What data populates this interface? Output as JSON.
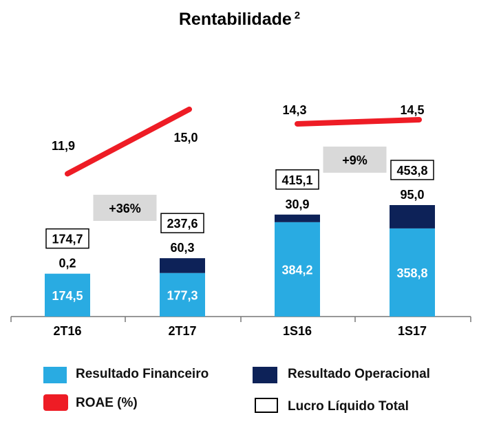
{
  "title": "Rentabilidade",
  "title_sup": "2",
  "colors": {
    "financeiro": "#29abe2",
    "operacional": "#0d2258",
    "roae": "#ee1c25",
    "growth_box": "#d9d9d9"
  },
  "chart_data": {
    "type": "bar",
    "stacked": true,
    "categories": [
      "2T16",
      "2T17",
      "1S16",
      "1S17"
    ],
    "series": [
      {
        "name": "Resultado Financeiro",
        "values": [
          174.5,
          177.3,
          384.2,
          358.8
        ],
        "labels": [
          "174,5",
          "177,3",
          "384,2",
          "358,8"
        ]
      },
      {
        "name": "Resultado Operacional",
        "values": [
          0.2,
          60.3,
          30.9,
          95.0
        ],
        "labels": [
          "0,2",
          "60,3",
          "30,9",
          "95,0"
        ]
      }
    ],
    "totals": {
      "name": "Lucro Líquido Total",
      "values": [
        174.7,
        237.6,
        415.1,
        453.8
      ],
      "labels": [
        "174,7",
        "237,6",
        "415,1",
        "453,8"
      ]
    },
    "roae": {
      "name": "ROAE (%)",
      "values": [
        11.9,
        15.0,
        14.3,
        14.5
      ],
      "labels": [
        "11,9",
        "15,0",
        "14,3",
        "14,5"
      ]
    },
    "growth": [
      "+36%",
      "+9%"
    ]
  },
  "legend": {
    "financeiro": "Resultado Financeiro",
    "operacional": "Resultado Operacional",
    "roae": "ROAE (%)",
    "total": "Lucro Líquido Total"
  }
}
